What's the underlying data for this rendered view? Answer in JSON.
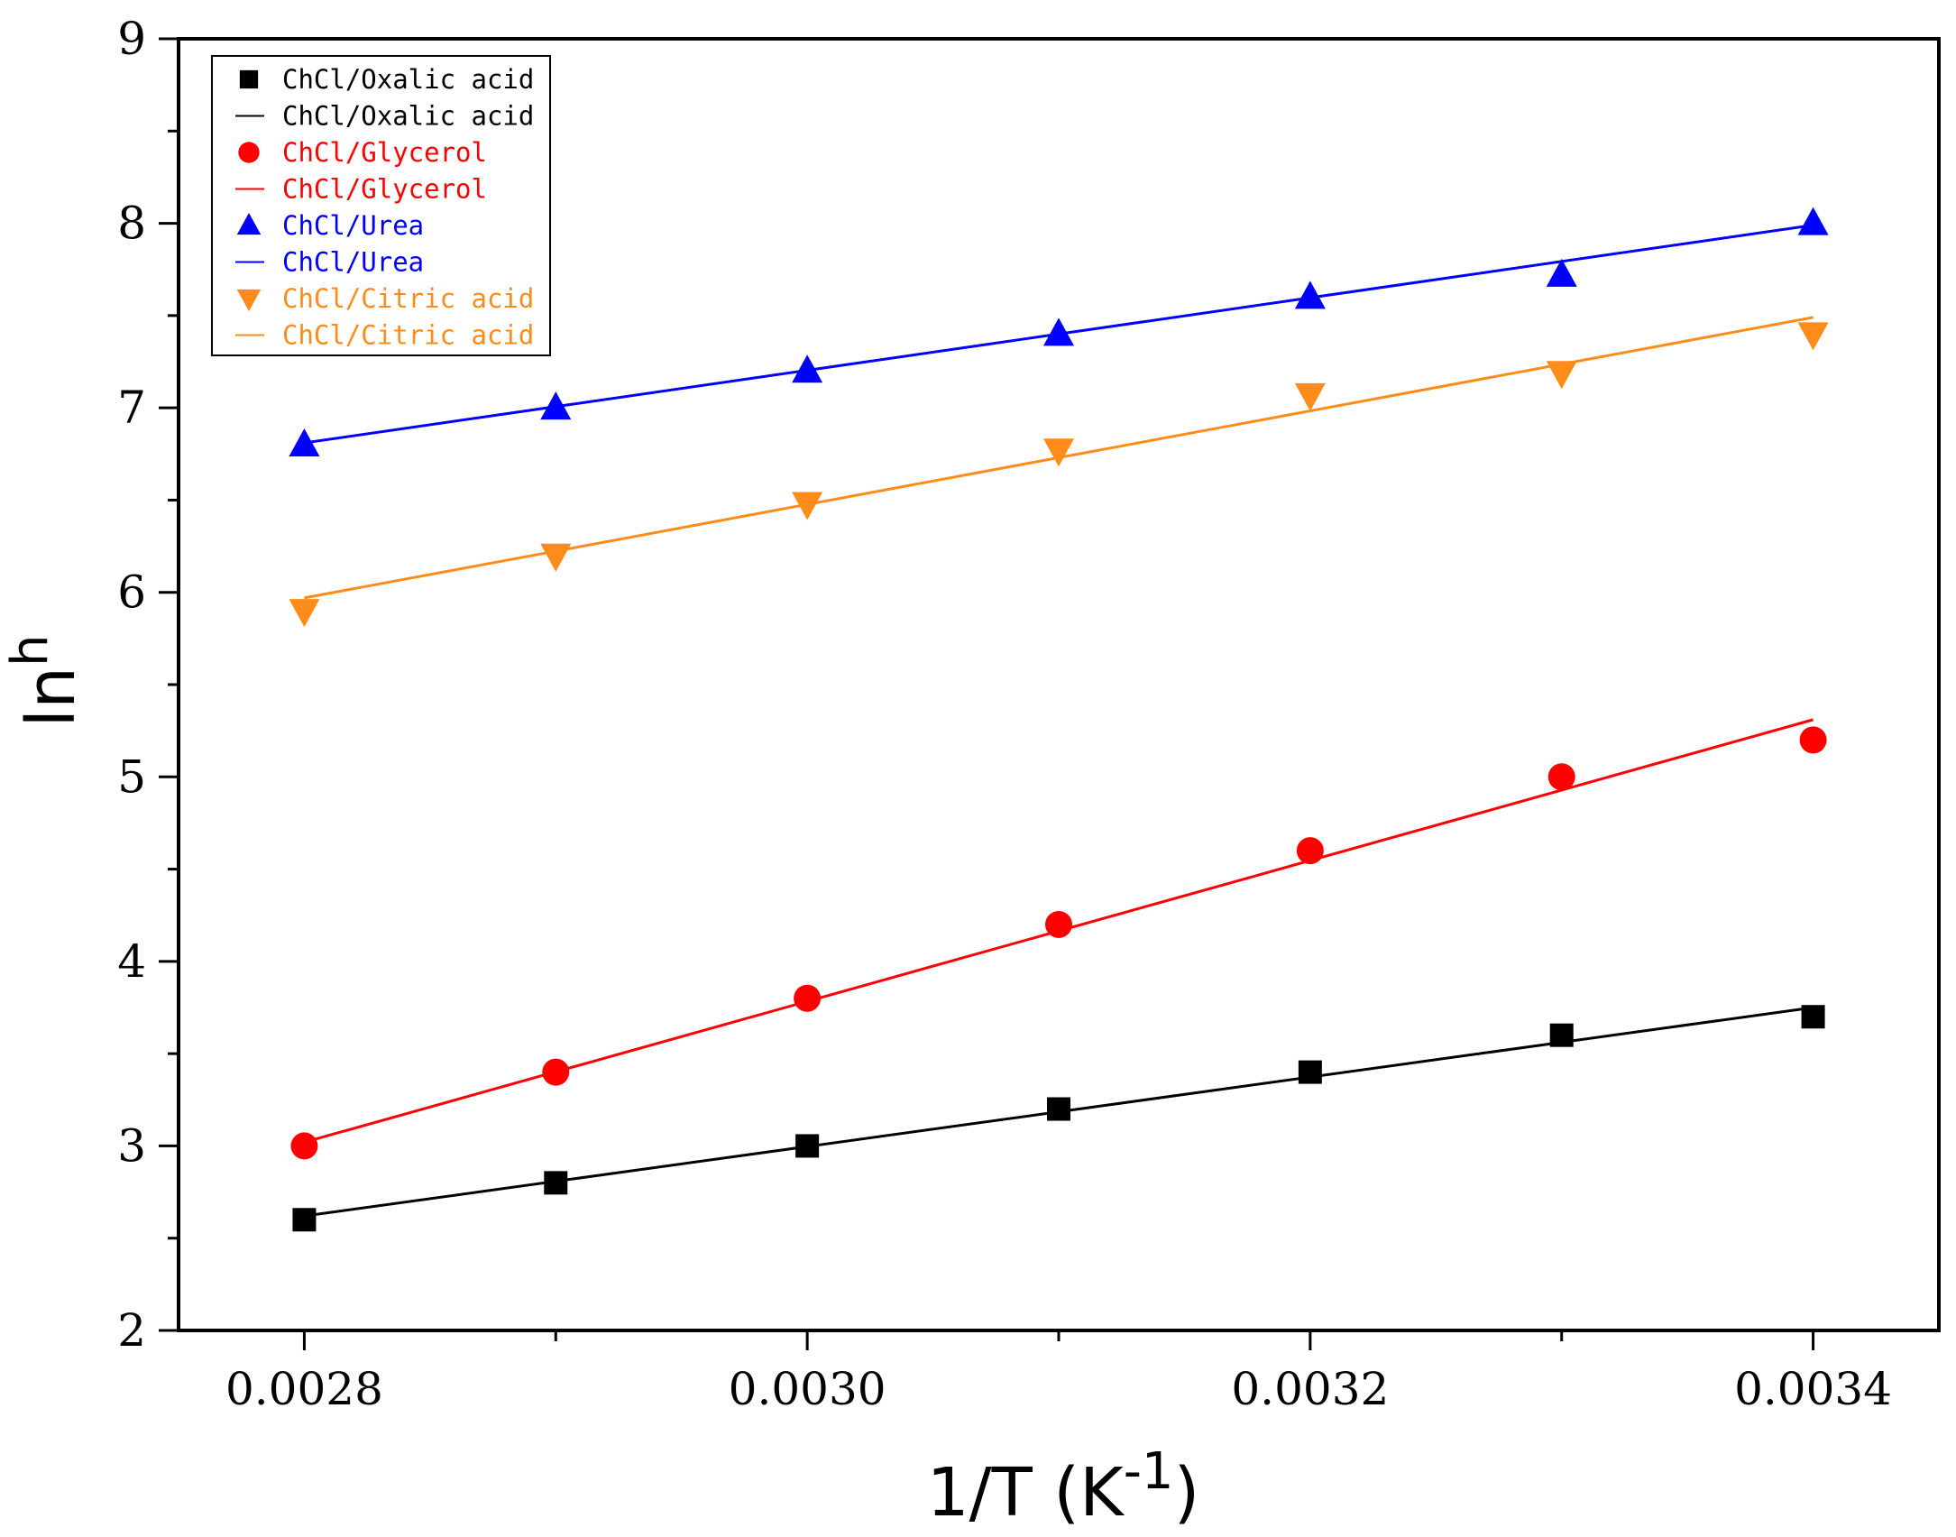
{
  "chart_data": {
    "type": "scatter",
    "title": "",
    "xlabel": {
      "base": "1/T (K",
      "sup": "-1",
      "tail": ")"
    },
    "ylabel": {
      "base": "ln",
      "sup": "h"
    },
    "xlim": [
      0.00275,
      0.00345
    ],
    "ylim": [
      2,
      9
    ],
    "xticks": [
      0.0028,
      0.003,
      0.0032,
      0.0034
    ],
    "xtick_labels": [
      "0.0028",
      "0.0030",
      "0.0032",
      "0.0034"
    ],
    "xminor": [
      0.0029,
      0.0031,
      0.0033
    ],
    "yticks": [
      2,
      3,
      4,
      5,
      6,
      7,
      8,
      9
    ],
    "ytick_labels": [
      "2",
      "3",
      "4",
      "5",
      "6",
      "7",
      "8",
      "9"
    ],
    "grid": false,
    "legend_position": "top-left",
    "x": [
      0.0028,
      0.0029,
      0.003,
      0.0031,
      0.0032,
      0.0033,
      0.0034
    ],
    "series": [
      {
        "name": "ChCl/Oxalic acid",
        "fit_name": "ChCl/Oxalic acid",
        "color": "#000000",
        "marker": "square",
        "values": [
          2.6,
          2.8,
          3.0,
          3.2,
          3.4,
          3.6,
          3.7
        ],
        "fit": [
          2.62,
          3.75
        ]
      },
      {
        "name": "ChCl/Glycerol",
        "fit_name": "ChCl/Glycerol",
        "color": "#ff0000",
        "marker": "circle",
        "values": [
          3.0,
          3.4,
          3.8,
          4.2,
          4.6,
          5.0,
          5.2
        ],
        "fit": [
          3.02,
          5.31
        ]
      },
      {
        "name": "ChCl/Urea",
        "fit_name": "ChCl/Urea",
        "color": "#0000ff",
        "marker": "triangle-up",
        "values": [
          6.8,
          7.0,
          7.2,
          7.4,
          7.6,
          7.72,
          8.0
        ],
        "fit": [
          6.81,
          7.99
        ]
      },
      {
        "name": "ChCl/Citric acid",
        "fit_name": "ChCl/Citric acid",
        "color": "#ff8c1a",
        "marker": "triangle-down",
        "values": [
          5.9,
          6.2,
          6.48,
          6.77,
          7.07,
          7.19,
          7.4
        ],
        "fit": [
          5.97,
          7.49
        ]
      }
    ]
  }
}
